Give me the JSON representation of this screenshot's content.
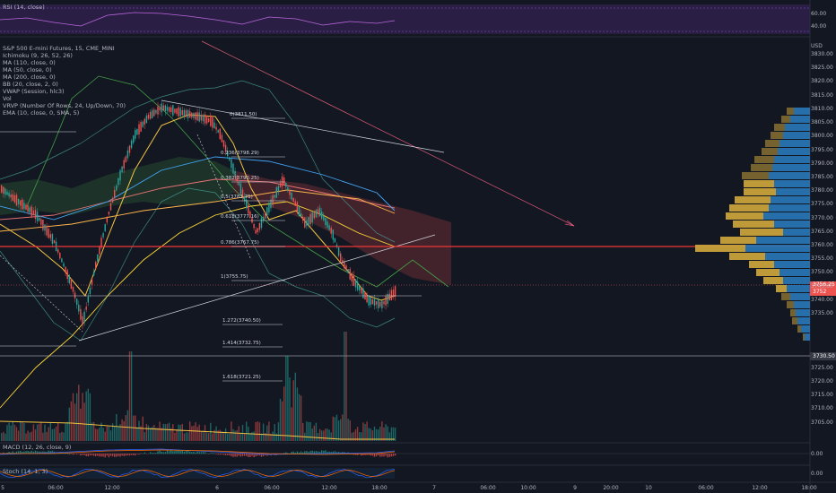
{
  "rsi": {
    "label": "RSI (14, close)",
    "ticks": [
      "60.00",
      "40.00"
    ]
  },
  "main_legend": {
    "symbol": "S&P 500 E-mini Futures, 15, CME_MINI",
    "indicators": [
      "Ichimoku (9, 26, 52, 26)",
      "MA (110, close, 0)",
      "MA (50, close, 0)",
      "MA (200, close, 0)",
      "BB (20, close, 2, 0)",
      "VWAP (Session, hlc3)",
      "Vol",
      "VRVP (Number Of Rows, 24, Up/Down, 70)",
      "EMA (10, close, 0, SMA, 5)"
    ]
  },
  "currency": "USD",
  "price_axis": [
    "3830.00",
    "3825.00",
    "3820.00",
    "3815.00",
    "3810.00",
    "3805.00",
    "3800.00",
    "3795.00",
    "3790.00",
    "3785.00",
    "3780.00",
    "3775.00",
    "3770.00",
    "3765.00",
    "3760.00",
    "3755.00",
    "3750.00",
    "3745.00",
    "3740.00",
    "3735.00",
    "3725.00",
    "3720.00",
    "3715.00",
    "3710.00",
    "3705.00"
  ],
  "price_tags": {
    "last_price": "3756.25",
    "countdown": "3752",
    "horizontal_level": "3730.50"
  },
  "fibonacci": [
    {
      "ratio": "0",
      "value": "3811.50",
      "label": "0(3811.50)"
    },
    {
      "ratio": "0.236",
      "value": "3798.29",
      "label": "0.236(3798.29)"
    },
    {
      "ratio": "0.382",
      "value": "3790.25",
      "label": "0.382(3790.25)"
    },
    {
      "ratio": "0.5",
      "value": "3783.75",
      "label": "0.5(3783.75)"
    },
    {
      "ratio": "0.618",
      "value": "3777.16",
      "label": "0.618(3777.16)"
    },
    {
      "ratio": "0.786",
      "value": "3767.75",
      "label": "0.786(3767.75)"
    },
    {
      "ratio": "1",
      "value": "3755.75",
      "label": "1(3755.75)"
    },
    {
      "ratio": "1.272",
      "value": "3740.50",
      "label": "1.272(3740.50)"
    },
    {
      "ratio": "1.414",
      "value": "3732.75",
      "label": "1.414(3732.75)"
    },
    {
      "ratio": "1.618",
      "value": "3721.25",
      "label": "1.618(3721.25)"
    }
  ],
  "macd": {
    "label": "MACD (12, 26, close, 9)",
    "tick": "0.00"
  },
  "stoch": {
    "label": "Stoch (14, 1, 3)",
    "tick": "0.00"
  },
  "time_axis": [
    "5",
    "06:00",
    "12:00",
    "6",
    "06:00",
    "12:00",
    "18:00",
    "7",
    "06:00",
    "10:00",
    "9",
    "20:00",
    "10",
    "06:00",
    "12:00",
    "18:00"
  ],
  "colors": {
    "background": "#131722",
    "up": "#26a69a",
    "down": "#ef5350",
    "rsi_band": "#2a1e45",
    "vrvp_up": "#2979b9",
    "vrvp_down": "#c8a13a",
    "ema": "#f5c542",
    "level": "#ef3737"
  }
}
